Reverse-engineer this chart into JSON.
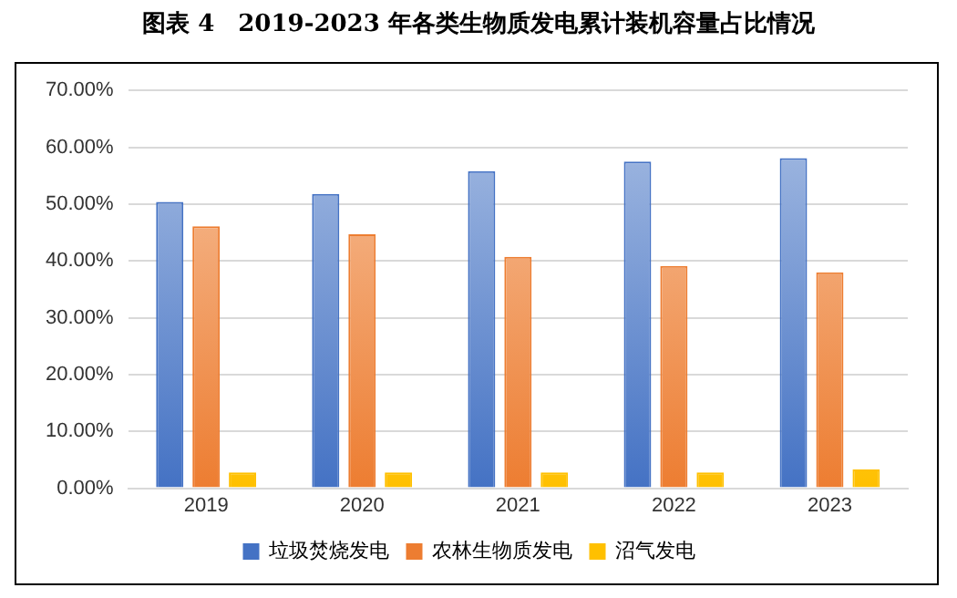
{
  "chart_data": {
    "type": "bar",
    "title": "图表 4　2019-2023 年各类生物质发电累计装机容量占比情况",
    "categories": [
      "2019",
      "2020",
      "2021",
      "2022",
      "2023"
    ],
    "series": [
      {
        "name": "垃圾焚烧发电",
        "color": "#4472c4",
        "values": [
          50.4,
          51.8,
          55.8,
          57.5,
          58.1
        ]
      },
      {
        "name": "农林生物质发电",
        "color": "#ed7d31",
        "values": [
          46.1,
          44.7,
          40.7,
          39.1,
          38.0
        ]
      },
      {
        "name": "沼气发电",
        "color": "#ffc000",
        "values": [
          2.8,
          2.8,
          2.8,
          2.8,
          3.3
        ]
      }
    ],
    "ylim": [
      0,
      70
    ],
    "yticks": [
      {
        "value": 0,
        "label": "0.00%"
      },
      {
        "value": 10,
        "label": "10.00%"
      },
      {
        "value": 20,
        "label": "20.00%"
      },
      {
        "value": 30,
        "label": "30.00%"
      },
      {
        "value": 40,
        "label": "40.00%"
      },
      {
        "value": 50,
        "label": "50.00%"
      },
      {
        "value": 60,
        "label": "60.00%"
      },
      {
        "value": 70,
        "label": "70.00%"
      }
    ],
    "grid": "y",
    "legend": "bottom"
  }
}
